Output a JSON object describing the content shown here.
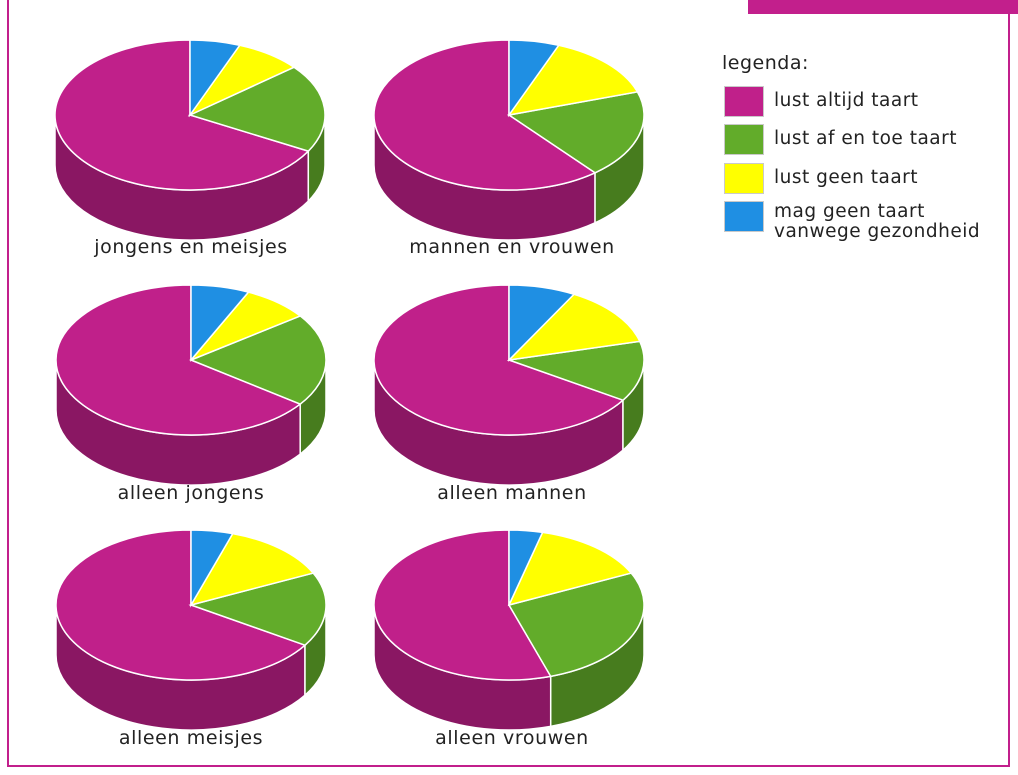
{
  "frame": {
    "border_color": "#c21f8c"
  },
  "legend": {
    "title": "legenda:",
    "items": [
      {
        "label": "lust altijd taart",
        "color": "#c0208a"
      },
      {
        "label": "lust af en toe taart",
        "color": "#62ac2a"
      },
      {
        "label": "lust geen taart",
        "color": "#ffff00"
      },
      {
        "label": "mag geen taart\nvanwege gezondheid",
        "color": "#1f8fe3"
      }
    ]
  },
  "chart_data": [
    {
      "type": "pie",
      "title": "jongens en meisjes",
      "labels": [
        "lust altijd taart",
        "lust af en toe taart",
        "lust geen taart",
        "mag geen taart vanwege gezondheid"
      ],
      "values": [
        67,
        19,
        8,
        6
      ]
    },
    {
      "type": "pie",
      "title": "mannen en vrouwen",
      "labels": [
        "lust altijd taart",
        "lust af en toe taart",
        "lust geen taart",
        "mag geen taart vanwege gezondheid"
      ],
      "values": [
        61,
        19,
        14,
        6
      ]
    },
    {
      "type": "pie",
      "title": "alleen jongens",
      "labels": [
        "lust altijd taart",
        "lust af en toe taart",
        "lust geen taart",
        "mag geen taart vanwege gezondheid"
      ],
      "values": [
        65,
        20,
        8,
        7
      ]
    },
    {
      "type": "pie",
      "title": "alleen mannen",
      "labels": [
        "lust altijd taart",
        "lust af en toe taart",
        "lust geen taart",
        "mag geen taart vanwege gezondheid"
      ],
      "values": [
        66,
        13,
        13,
        8
      ]
    },
    {
      "type": "pie",
      "title": "alleen meisjes",
      "labels": [
        "lust altijd taart",
        "lust af en toe taart",
        "lust geen taart",
        "mag geen taart vanwege gezondheid"
      ],
      "values": [
        66,
        16,
        13,
        5
      ]
    },
    {
      "type": "pie",
      "title": "alleen vrouwen",
      "labels": [
        "lust altijd taart",
        "lust af en toe taart",
        "lust geen taart",
        "mag geen taart vanwege gezondheid"
      ],
      "values": [
        55,
        27,
        14,
        4
      ]
    }
  ]
}
